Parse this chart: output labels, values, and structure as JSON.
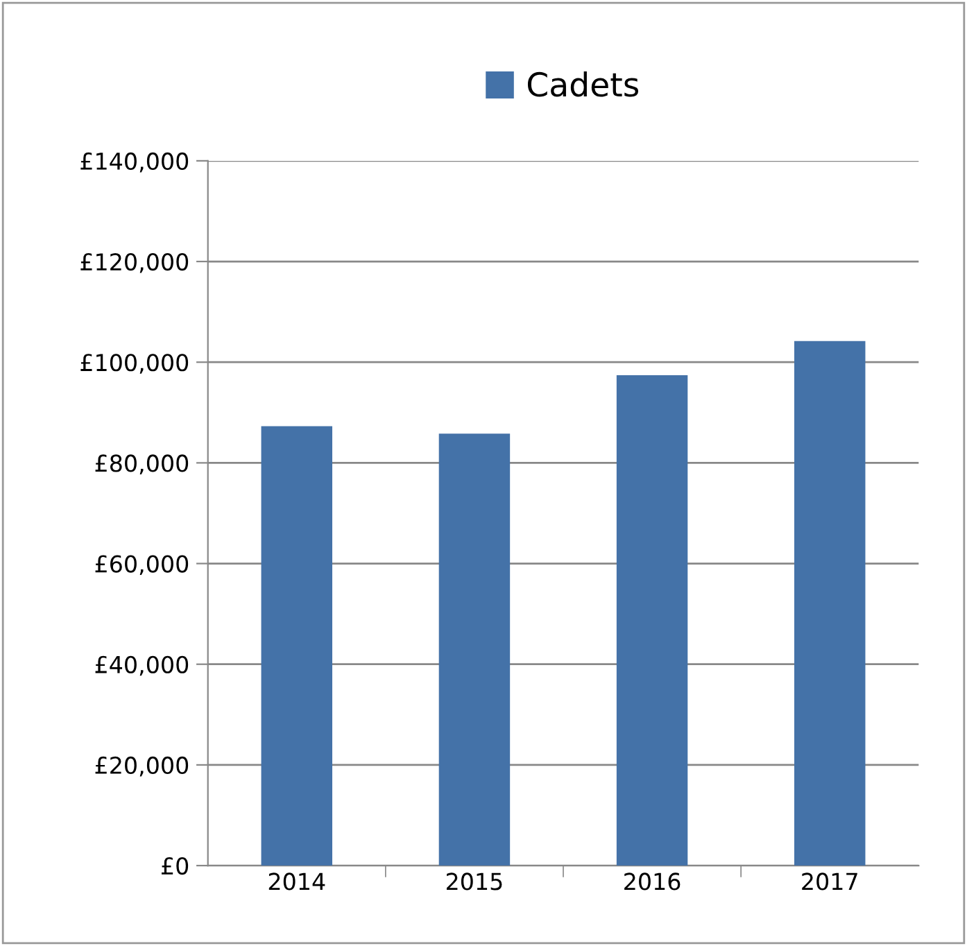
{
  "chart_data": {
    "type": "bar",
    "categories": [
      "2014",
      "2015",
      "2016",
      "2017"
    ],
    "series": [
      {
        "name": "Cadets",
        "color": "#4472a8",
        "values": [
          87300,
          85800,
          97400,
          104200
        ]
      }
    ],
    "ylim": [
      0,
      140000
    ],
    "yticks": [
      {
        "value": 0,
        "label": "£0"
      },
      {
        "value": 20000,
        "label": "£20,000"
      },
      {
        "value": 40000,
        "label": "£40,000"
      },
      {
        "value": 60000,
        "label": "£60,000"
      },
      {
        "value": 80000,
        "label": "£80,000"
      },
      {
        "value": 100000,
        "label": "£100,000"
      },
      {
        "value": 120000,
        "label": "£120,000"
      },
      {
        "value": 140000,
        "label": "£140,000"
      }
    ],
    "grid": "y",
    "legend": "top"
  }
}
